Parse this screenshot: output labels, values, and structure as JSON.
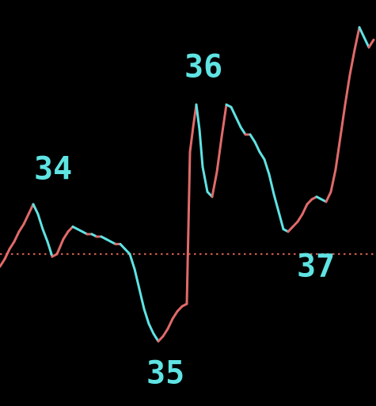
{
  "chart_data": {
    "type": "line",
    "title": "",
    "xlabel": "",
    "ylabel": "",
    "grid": false,
    "legend": "none",
    "colors": {
      "background": "#000000",
      "rising": "#e06a6a",
      "falling": "#5fe3e3",
      "reference_line": "#c85a4a",
      "label": "#5fe3e3"
    },
    "reference_line": {
      "style": "dotted",
      "value": 6.1
    },
    "series": [
      {
        "x": [
          0,
          6,
          12,
          18,
          24,
          30,
          36,
          42,
          48,
          54,
          60,
          66,
          72,
          80,
          86,
          92,
          98,
          104,
          110,
          116,
          122,
          128,
          134,
          140,
          146,
          152,
          158,
          164,
          170,
          176,
          182,
          188,
          194,
          200,
          206,
          212,
          218,
          224,
          230,
          236,
          240,
          244,
          248,
          252,
          256,
          262,
          268,
          274,
          280,
          286,
          292,
          298,
          304,
          310,
          316,
          322,
          328,
          334,
          340,
          346,
          352,
          358,
          364,
          370,
          376,
          382,
          388,
          394,
          400,
          406,
          412,
          418,
          424,
          430,
          436,
          442,
          448,
          454,
          460,
          466,
          472
        ],
        "y": [
          5.6,
          5.9,
          6.3,
          6.6,
          7.0,
          7.3,
          7.7,
          8.1,
          7.7,
          7.1,
          6.6,
          6.0,
          6.1,
          6.7,
          7.0,
          7.2,
          7.1,
          7.0,
          6.9,
          6.9,
          6.8,
          6.8,
          6.7,
          6.6,
          6.5,
          6.5,
          6.3,
          6.1,
          5.5,
          4.7,
          3.9,
          3.3,
          2.9,
          2.6,
          2.8,
          3.1,
          3.5,
          3.8,
          4.0,
          4.1,
          10.2,
          11.2,
          12.1,
          11.1,
          9.6,
          8.6,
          8.4,
          9.4,
          10.8,
          12.1,
          12.0,
          11.6,
          11.2,
          10.9,
          10.9,
          10.6,
          10.2,
          9.9,
          9.3,
          8.5,
          7.8,
          7.1,
          7.0,
          7.2,
          7.4,
          7.7,
          8.1,
          8.3,
          8.4,
          8.3,
          8.2,
          8.6,
          9.5,
          10.8,
          12.1,
          13.3,
          14.3,
          15.2,
          14.8,
          14.4,
          14.7
        ]
      }
    ],
    "xlim": [
      0,
      475
    ],
    "ylim": [
      0,
      16.3
    ],
    "annotations": [
      {
        "text": "34",
        "x": 43,
        "y": 9.1,
        "type": "peak"
      },
      {
        "text": "35",
        "x": 185,
        "y": 0.9,
        "type": "trough"
      },
      {
        "text": "36",
        "x": 233,
        "y": 13.2,
        "type": "peak"
      },
      {
        "text": "37",
        "x": 375,
        "y": 5.2,
        "type": "trough"
      }
    ]
  }
}
